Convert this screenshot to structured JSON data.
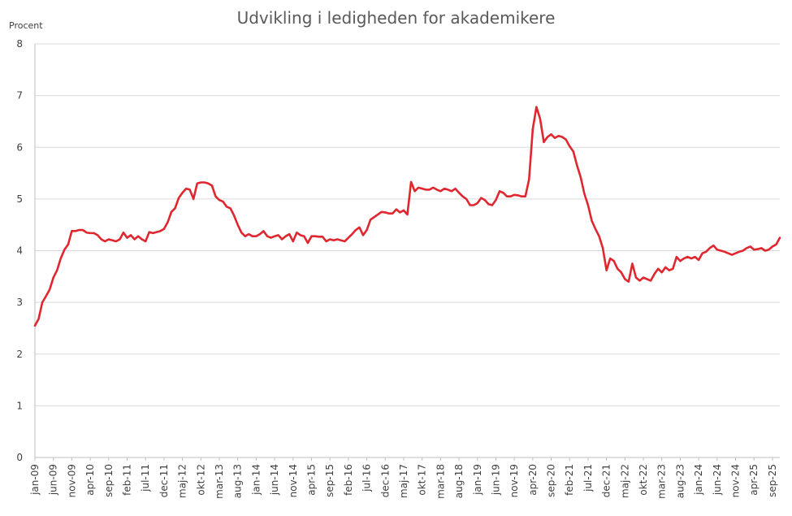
{
  "chart_data": {
    "type": "line",
    "title": "Udvikling i ledigheden for akademikere",
    "ylabel": "Procent",
    "xlabel": "",
    "ylim": [
      0,
      8
    ],
    "y_ticks": [
      0,
      1,
      2,
      3,
      4,
      5,
      6,
      7,
      8
    ],
    "grid": "horizontal",
    "line_color": "#e0262e",
    "x_start": "jan-09",
    "x_ticks": [
      "jan-09",
      "jun-09",
      "nov-09",
      "apr-10",
      "sep-10",
      "feb-11",
      "jul-11",
      "dec-11",
      "maj-12",
      "okt-12",
      "mar-13",
      "aug-13",
      "jan-14",
      "jun-14",
      "nov-14",
      "apr-15",
      "sep-15",
      "feb-16",
      "jul-16",
      "dec-16",
      "maj-17",
      "okt-17",
      "mar-18",
      "aug-18",
      "jan-19",
      "jun-19",
      "nov-19",
      "apr-20",
      "sep-20",
      "feb-21",
      "jul-21",
      "dec-21",
      "maj-22",
      "okt-22",
      "mar-23",
      "aug-23",
      "jan-24",
      "jun-24",
      "nov-24",
      "apr-25",
      "sep-25"
    ],
    "series": [
      {
        "values": [
          2.55,
          2.68,
          3.0,
          3.12,
          3.25,
          3.48,
          3.62,
          3.85,
          4.02,
          4.12,
          4.38,
          4.38,
          4.4,
          4.4,
          4.35,
          4.34,
          4.34,
          4.3,
          4.22,
          4.18,
          4.22,
          4.2,
          4.18,
          4.22,
          4.35,
          4.25,
          4.3,
          4.22,
          4.28,
          4.22,
          4.18,
          4.36,
          4.34,
          4.36,
          4.38,
          4.42,
          4.55,
          4.75,
          4.82,
          5.02,
          5.12,
          5.2,
          5.18,
          5.0,
          5.3,
          5.32,
          5.32,
          5.3,
          5.26,
          5.05,
          4.98,
          4.95,
          4.85,
          4.82,
          4.68,
          4.5,
          4.35,
          4.28,
          4.32,
          4.28,
          4.28,
          4.32,
          4.38,
          4.28,
          4.25,
          4.28,
          4.3,
          4.22,
          4.28,
          4.32,
          4.18,
          4.35,
          4.3,
          4.28,
          4.15,
          4.28,
          4.28,
          4.27,
          4.27,
          4.18,
          4.22,
          4.2,
          4.22,
          4.2,
          4.18,
          4.25,
          4.32,
          4.4,
          4.45,
          4.3,
          4.4,
          4.6,
          4.65,
          4.7,
          4.75,
          4.74,
          4.72,
          4.72,
          4.8,
          4.74,
          4.78,
          4.7,
          5.33,
          5.15,
          5.22,
          5.2,
          5.18,
          5.18,
          5.22,
          5.18,
          5.15,
          5.2,
          5.18,
          5.15,
          5.2,
          5.12,
          5.05,
          5.0,
          4.88,
          4.88,
          4.92,
          5.02,
          4.98,
          4.9,
          4.88,
          4.98,
          5.15,
          5.12,
          5.05,
          5.05,
          5.08,
          5.07,
          5.05,
          5.05,
          5.38,
          6.35,
          6.78,
          6.55,
          6.1,
          6.2,
          6.25,
          6.18,
          6.22,
          6.2,
          6.15,
          6.02,
          5.92,
          5.65,
          5.42,
          5.1,
          4.88,
          4.58,
          4.42,
          4.28,
          4.05,
          3.62,
          3.85,
          3.8,
          3.65,
          3.58,
          3.45,
          3.4,
          3.75,
          3.48,
          3.42,
          3.48,
          3.45,
          3.42,
          3.55,
          3.65,
          3.58,
          3.68,
          3.62,
          3.65,
          3.88,
          3.8,
          3.85,
          3.88,
          3.85,
          3.88,
          3.82,
          3.95,
          3.98,
          4.05,
          4.1,
          4.02,
          4.0,
          3.98,
          3.95,
          3.92,
          3.95,
          3.98,
          4.0,
          4.05,
          4.08,
          4.02,
          4.03,
          4.05,
          4.0,
          4.02,
          4.08,
          4.12,
          4.25
        ]
      }
    ]
  }
}
